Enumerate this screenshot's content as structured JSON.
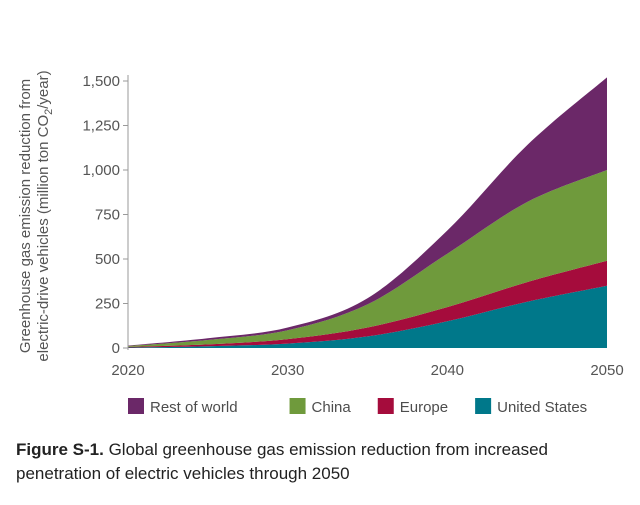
{
  "caption": {
    "figure_label": "Figure S-1.",
    "text": " Global greenhouse gas emission reduction from increased penetration of electric vehicles through 2050"
  },
  "chart_data": {
    "type": "area",
    "stacked": true,
    "title": "",
    "xlabel": "",
    "ylabel_line1": "Greenhouse gas emission reduction from",
    "ylabel_line2": "electric-drive vehicles (million ton CO",
    "ylabel_sub": "2",
    "ylabel_suffix": "/year)",
    "xlim": [
      2020,
      2050
    ],
    "ylim": [
      0,
      1500
    ],
    "x_ticks": [
      "2020",
      "2030",
      "2040",
      "2050"
    ],
    "y_ticks": [
      "0",
      "250",
      "500",
      "750",
      "1,000",
      "1,250",
      "1,500"
    ],
    "x_tick_values": [
      2020,
      2030,
      2040,
      2050
    ],
    "y_tick_values": [
      0,
      250,
      500,
      750,
      1000,
      1250,
      1500
    ],
    "grid": false,
    "legend_position": "bottom",
    "x": [
      2020,
      2025,
      2030,
      2035,
      2040,
      2045,
      2050
    ],
    "series": [
      {
        "name": "United States",
        "color": "#00788a",
        "values": [
          3,
          10,
          25,
          65,
          150,
          260,
          350
        ]
      },
      {
        "name": "Europe",
        "color": "#a50c3c",
        "values": [
          3,
          10,
          25,
          50,
          80,
          110,
          140
        ]
      },
      {
        "name": "China",
        "color": "#6f9a3c",
        "values": [
          5,
          25,
          50,
          130,
          300,
          450,
          510
        ]
      },
      {
        "name": "Rest of world",
        "color": "#6b2868",
        "values": [
          3,
          10,
          15,
          35,
          130,
          320,
          520
        ]
      }
    ],
    "legend_order": [
      "Rest of world",
      "China",
      "Europe",
      "United States"
    ]
  }
}
